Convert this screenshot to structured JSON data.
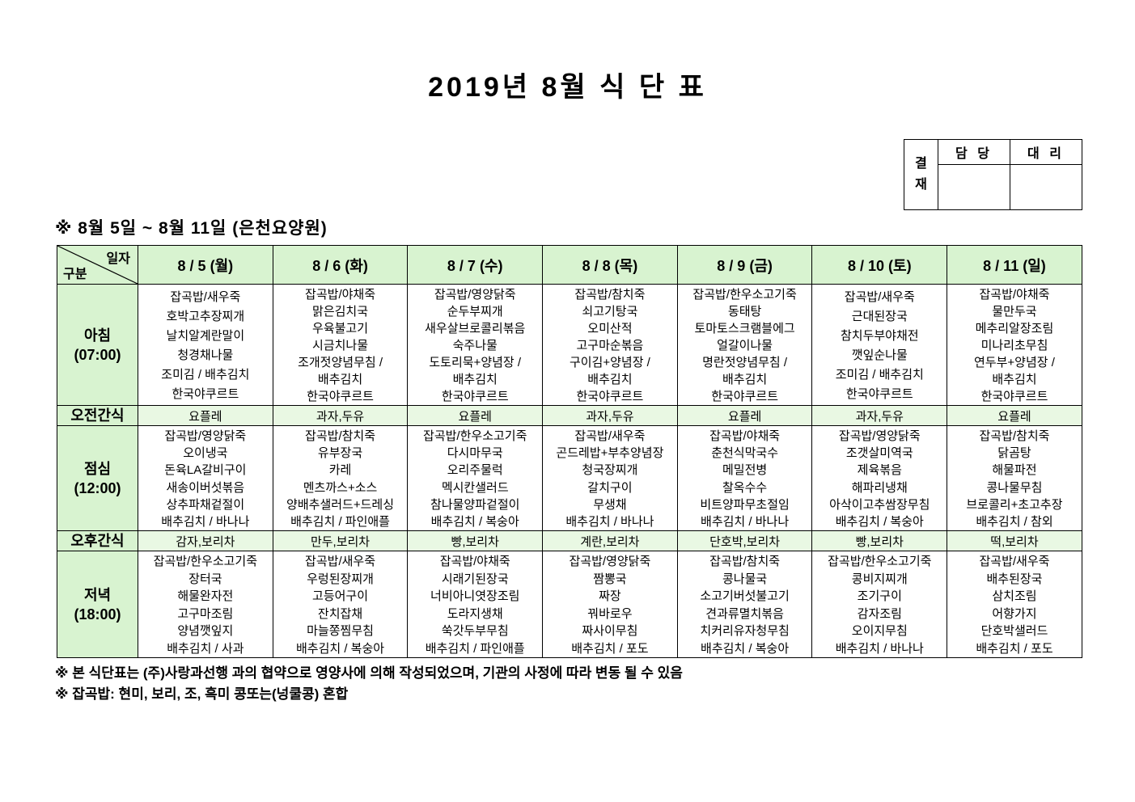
{
  "page": {
    "title": "2019년 8월 식 단 표"
  },
  "approval": {
    "label": "결재",
    "label_chars": [
      "결",
      "재"
    ],
    "columns": [
      "담 당",
      "대 리"
    ]
  },
  "week": {
    "subtitle": "※ 8월 5일 ~ 8월 11일 (은천요양원)"
  },
  "table": {
    "corner": {
      "date_label": "일자",
      "category_label": "구분"
    },
    "days": [
      "8 / 5 (월)",
      "8 / 6 (화)",
      "8 / 7 (수)",
      "8 / 8 (목)",
      "8 / 9 (금)",
      "8 / 10 (토)",
      "8 / 11 (일)"
    ],
    "rows": [
      {
        "id": "breakfast",
        "type": "meal",
        "label": "아침",
        "time": "(07:00)",
        "cells": [
          [
            "잡곡밥/새우죽",
            "호박고추장찌개",
            "날치알계란말이",
            "청경채나물",
            "조미김 / 배추김치",
            "한국야쿠르트"
          ],
          [
            "잡곡밥/야채죽",
            "맑은김치국",
            "우육불고기",
            "시금치나물",
            "조개젓양념무침 /",
            "배추김치",
            "한국야쿠르트"
          ],
          [
            "잡곡밥/영양닭죽",
            "순두부찌개",
            "새우살브로콜리볶음",
            "숙주나물",
            "도토리묵+양념장 /",
            "배추김치",
            "한국야쿠르트"
          ],
          [
            "잡곡밥/참치죽",
            "쇠고기탕국",
            "오미산적",
            "고구마순볶음",
            "구이김+양념장 /",
            "배추김치",
            "한국야쿠르트"
          ],
          [
            "잡곡밥/한우소고기죽",
            "동태탕",
            "토마토스크램블에그",
            "얼갈이나물",
            "명란젓양념무침 /",
            "배추김치",
            "한국야쿠르트"
          ],
          [
            "잡곡밥/새우죽",
            "근대된장국",
            "참치두부야채전",
            "깻잎순나물",
            "조미김 / 배추김치",
            "한국야쿠르트"
          ],
          [
            "잡곡밥/야채죽",
            "물만두국",
            "메추리알장조림",
            "미나리초무침",
            "연두부+양념장 /",
            "배추김치",
            "한국야쿠르트"
          ]
        ]
      },
      {
        "id": "am-snack",
        "type": "snack",
        "label": "오전간식",
        "cells": [
          "요플레",
          "과자,두유",
          "요플레",
          "과자,두유",
          "요플레",
          "과자,두유",
          "요플레"
        ]
      },
      {
        "id": "lunch",
        "type": "meal",
        "label": "점심",
        "time": "(12:00)",
        "cells": [
          [
            "잡곡밥/영양닭죽",
            "오이냉국",
            "돈육LA갈비구이",
            "새송이버섯볶음",
            "상추파채겉절이",
            "배추김치 / 바나나"
          ],
          [
            "잡곡밥/참치죽",
            "유부장국",
            "카레",
            "멘츠까스+소스",
            "양배추샐러드+드레싱",
            "배추김치 / 파인애플"
          ],
          [
            "잡곡밥/한우소고기죽",
            "다시마무국",
            "오리주물럭",
            "멕시칸샐러드",
            "참나물양파겉절이",
            "배추김치 / 복숭아"
          ],
          [
            "잡곡밥/새우죽",
            "곤드레밥+부추양념장",
            "청국장찌개",
            "갈치구이",
            "무생채",
            "배추김치 / 바나나"
          ],
          [
            "잡곡밥/야채죽",
            "춘천식막국수",
            "메밀전병",
            "찰옥수수",
            "비트양파무초절임",
            "배추김치 / 바나나"
          ],
          [
            "잡곡밥/영양닭죽",
            "조갯살미역국",
            "제육볶음",
            "해파리냉채",
            "아삭이고추쌈장무침",
            "배추김치 / 복숭아"
          ],
          [
            "잡곡밥/참치죽",
            "닭곰탕",
            "해물파전",
            "콩나물무침",
            "브로콜리+초고추장",
            "배추김치 / 참외"
          ]
        ]
      },
      {
        "id": "pm-snack",
        "type": "snack",
        "label": "오후간식",
        "cells": [
          "감자,보리차",
          "만두,보리차",
          "빵,보리차",
          "계란,보리차",
          "단호박,보리차",
          "빵,보리차",
          "떡,보리차"
        ]
      },
      {
        "id": "dinner",
        "type": "meal",
        "label": "저녁",
        "time": "(18:00)",
        "cells": [
          [
            "잡곡밥/한우소고기죽",
            "장터국",
            "해물완자전",
            "고구마조림",
            "양념깻잎지",
            "배추김치 / 사과"
          ],
          [
            "잡곡밥/새우죽",
            "우렁된장찌개",
            "고등어구이",
            "잔치잡채",
            "마늘쫑찜무침",
            "배추김치 / 복숭아"
          ],
          [
            "잡곡밥/야채죽",
            "시래기된장국",
            "너비아니엿장조림",
            "도라지생채",
            "쑥갓두부무침",
            "배추김치 / 파인애플"
          ],
          [
            "잡곡밥/영양닭죽",
            "짬뽕국",
            "짜장",
            "꿔바로우",
            "짜사이무침",
            "배추김치 / 포도"
          ],
          [
            "잡곡밥/참치죽",
            "콩나물국",
            "소고기버섯불고기",
            "견과류멸치볶음",
            "치커리유자청무침",
            "배추김치 / 복숭아"
          ],
          [
            "잡곡밥/한우소고기죽",
            "콩비지찌개",
            "조기구이",
            "감자조림",
            "오이지무침",
            "배추김치 / 바나나"
          ],
          [
            "잡곡밥/새우죽",
            "배추된장국",
            "삼치조림",
            "어향가지",
            "단호박샐러드",
            "배추김치 / 포도"
          ]
        ]
      }
    ]
  },
  "notes": [
    "※ 본 식단표는 (주)사랑과선행 과의 협약으로 영양사에 의해 작성되었으며, 기관의 사정에 따라 변동 될 수 있음",
    "※ 잡곡밥: 현미, 보리, 조, 흑미 콩또는(넝쿨콩) 혼합"
  ],
  "colors": {
    "header_bg": "#d8f3d0",
    "snack_bg": "#e9f8e3",
    "border": "#000000"
  }
}
